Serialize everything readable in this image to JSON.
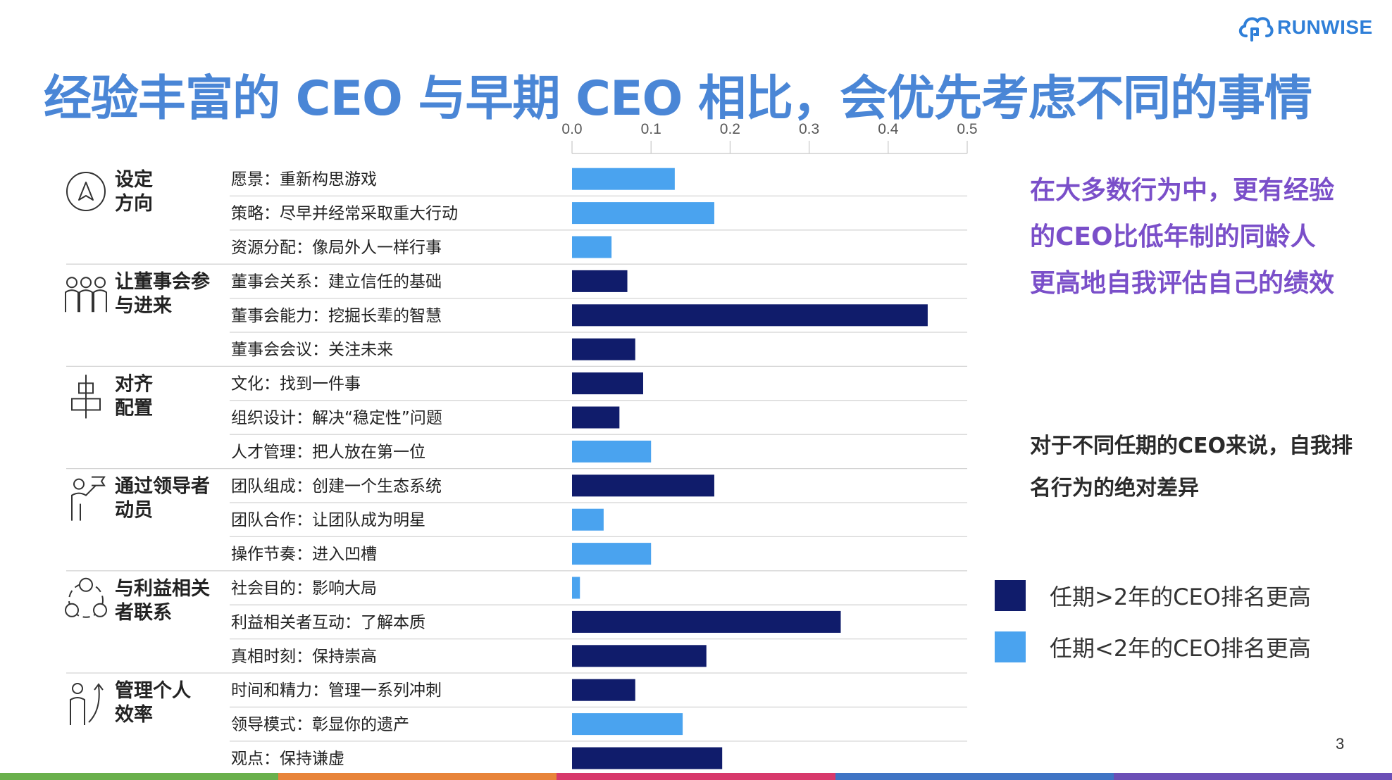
{
  "logo": {
    "text": "RUNWISE"
  },
  "title": "经验丰富的 CEO 与早期 CEO 相比，会优先考虑不同的事情",
  "side_note": "在大多数行为中，更有经验的CEO比低年制的同龄人更高地自我评估自己的绩效",
  "side_caption": "对于不同任期的CEO来说，自我排名行为的绝对差异",
  "legend": [
    {
      "label": "任期>2年的CEO排名更高",
      "color": "#101c6b"
    },
    {
      "label": "任期<2年的CEO排名更高",
      "color": "#4aa3ef"
    }
  ],
  "page_number": "3",
  "footer_colors": [
    "#6ab04c",
    "#e8843a",
    "#d8396b",
    "#3f74c4",
    "#6b4fb6"
  ],
  "categories": [
    {
      "label_lines": [
        "设定",
        "方向"
      ],
      "icon": "navigation-icon"
    },
    {
      "label_lines": [
        "让董事会参",
        "与进来"
      ],
      "icon": "people-group-icon"
    },
    {
      "label_lines": [
        "对齐",
        "配置"
      ],
      "icon": "alignment-icon"
    },
    {
      "label_lines": [
        "通过领导者",
        "动员"
      ],
      "icon": "presenter-icon"
    },
    {
      "label_lines": [
        "与利益相关",
        "者联系"
      ],
      "icon": "stakeholder-network-icon"
    },
    {
      "label_lines": [
        "管理个人",
        "效率"
      ],
      "icon": "growth-person-icon"
    }
  ],
  "chart_data": {
    "type": "bar",
    "orientation": "horizontal",
    "xlim": [
      0.0,
      0.5
    ],
    "ticks": [
      "0.0",
      "0.1",
      "0.2",
      "0.3",
      "0.4",
      "0.5"
    ],
    "series_colors": {
      "gt2": "#101c6b",
      "lt2": "#4aa3ef"
    },
    "rows": [
      {
        "label": "愿景：重新构思游戏",
        "value": 0.13,
        "series": "lt2",
        "group": 0
      },
      {
        "label": "策略：尽早并经常采取重大行动",
        "value": 0.18,
        "series": "lt2",
        "group": 0
      },
      {
        "label": "资源分配：像局外人一样行事",
        "value": 0.05,
        "series": "lt2",
        "group": 0
      },
      {
        "label": "董事会关系：建立信任的基础",
        "value": 0.07,
        "series": "gt2",
        "group": 1
      },
      {
        "label": "董事会能力：挖掘长辈的智慧",
        "value": 0.45,
        "series": "gt2",
        "group": 1
      },
      {
        "label": "董事会会议：关注未来",
        "value": 0.08,
        "series": "gt2",
        "group": 1
      },
      {
        "label": "文化：找到一件事",
        "value": 0.09,
        "series": "gt2",
        "group": 2
      },
      {
        "label": "组织设计：解决“稳定性”问题",
        "value": 0.06,
        "series": "gt2",
        "group": 2
      },
      {
        "label": "人才管理：把人放在第一位",
        "value": 0.1,
        "series": "lt2",
        "group": 2
      },
      {
        "label": "团队组成：创建一个生态系统",
        "value": 0.18,
        "series": "gt2",
        "group": 3
      },
      {
        "label": "团队合作：让团队成为明星",
        "value": 0.04,
        "series": "lt2",
        "group": 3
      },
      {
        "label": "操作节奏：进入凹槽",
        "value": 0.1,
        "series": "lt2",
        "group": 3
      },
      {
        "label": "社会目的：影响大局",
        "value": 0.01,
        "series": "lt2",
        "group": 4
      },
      {
        "label": "利益相关者互动：了解本质",
        "value": 0.34,
        "series": "gt2",
        "group": 4
      },
      {
        "label": "真相时刻：保持崇高",
        "value": 0.17,
        "series": "gt2",
        "group": 4
      },
      {
        "label": "时间和精力：管理一系列冲刺",
        "value": 0.08,
        "series": "gt2",
        "group": 5
      },
      {
        "label": "领导模式：彰显你的遗产",
        "value": 0.14,
        "series": "lt2",
        "group": 5
      },
      {
        "label": "观点：保持谦虚",
        "value": 0.19,
        "series": "gt2",
        "group": 5
      }
    ]
  }
}
